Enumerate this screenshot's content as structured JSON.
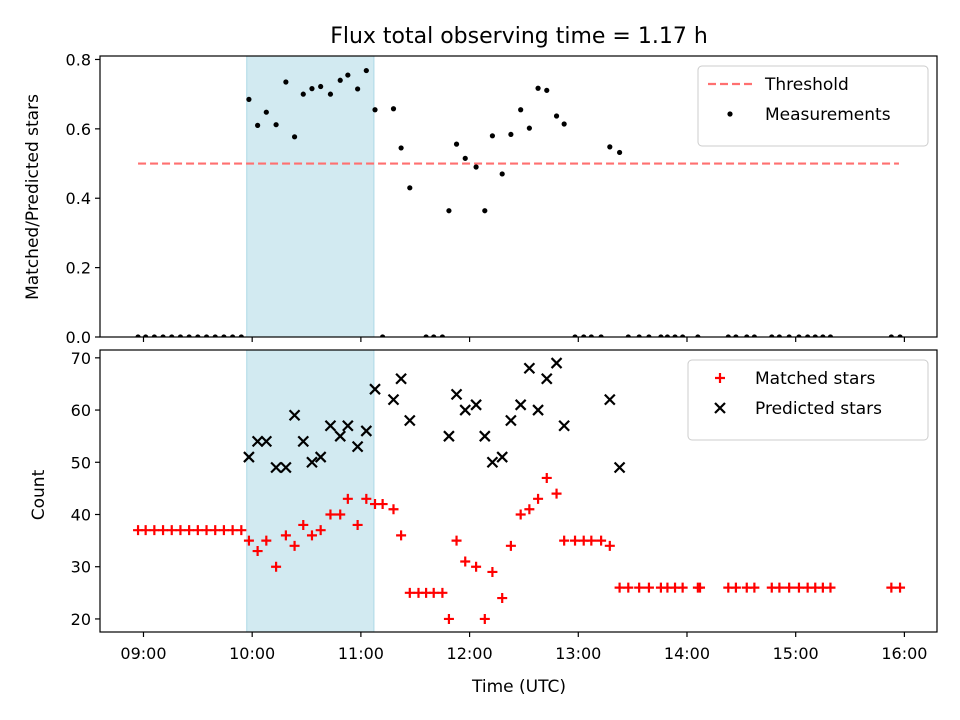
{
  "chart_data": [
    {
      "type": "scatter",
      "title": "Flux total observing time = 1.17 h",
      "xlabel": "",
      "ylabel": "Matched/Predicted stars",
      "x_unit": "hours (UTC)",
      "xlim": [
        8.6,
        16.3
      ],
      "ylim": [
        0,
        0.81
      ],
      "yticks": [
        0,
        0.2,
        0.4,
        0.6,
        0.8
      ],
      "yticklabels": [
        "0.0",
        "0.2",
        "0.4",
        "0.6",
        "0.8"
      ],
      "legend_position": "top-right",
      "shaded_region": {
        "x": [
          9.95,
          11.12
        ],
        "color": "#add8e6"
      },
      "threshold": {
        "name": "Threshold",
        "y": 0.5,
        "x": [
          8.95,
          15.95
        ],
        "color": "#ff7070",
        "style": "dashed"
      },
      "series": [
        {
          "name": "Measurements",
          "color": "#000000",
          "marker": "dot",
          "points": [
            [
              8.95,
              0
            ],
            [
              9.02,
              0
            ],
            [
              9.1,
              0
            ],
            [
              9.18,
              0
            ],
            [
              9.26,
              0
            ],
            [
              9.34,
              0
            ],
            [
              9.42,
              0
            ],
            [
              9.5,
              0
            ],
            [
              9.58,
              0
            ],
            [
              9.66,
              0
            ],
            [
              9.74,
              0
            ],
            [
              9.82,
              0
            ],
            [
              9.9,
              0
            ],
            [
              9.97,
              0.685
            ],
            [
              10.05,
              0.61
            ],
            [
              10.13,
              0.648
            ],
            [
              10.22,
              0.612
            ],
            [
              10.31,
              0.735
            ],
            [
              10.39,
              0.577
            ],
            [
              10.47,
              0.7
            ],
            [
              10.55,
              0.716
            ],
            [
              10.63,
              0.722
            ],
            [
              10.72,
              0.7
            ],
            [
              10.81,
              0.74
            ],
            [
              10.88,
              0.755
            ],
            [
              10.97,
              0.715
            ],
            [
              11.05,
              0.768
            ],
            [
              11.13,
              0.655
            ],
            [
              11.2,
              0
            ],
            [
              11.3,
              0.658
            ],
            [
              11.37,
              0.545
            ],
            [
              11.45,
              0.43
            ],
            [
              11.6,
              0
            ],
            [
              11.67,
              0
            ],
            [
              11.75,
              0
            ],
            [
              11.81,
              0.364
            ],
            [
              11.88,
              0.556
            ],
            [
              11.96,
              0.515
            ],
            [
              12.06,
              0.49
            ],
            [
              12.14,
              0.364
            ],
            [
              12.21,
              0.58
            ],
            [
              12.3,
              0.47
            ],
            [
              12.38,
              0.584
            ],
            [
              12.47,
              0.655
            ],
            [
              12.55,
              0.602
            ],
            [
              12.63,
              0.717
            ],
            [
              12.71,
              0.711
            ],
            [
              12.8,
              0.637
            ],
            [
              12.87,
              0.614
            ],
            [
              12.97,
              0
            ],
            [
              13.05,
              0
            ],
            [
              13.12,
              0
            ],
            [
              13.21,
              0
            ],
            [
              13.29,
              0.548
            ],
            [
              13.38,
              0.532
            ],
            [
              13.46,
              0
            ],
            [
              13.56,
              0
            ],
            [
              13.65,
              0
            ],
            [
              13.76,
              0
            ],
            [
              13.82,
              0
            ],
            [
              13.89,
              0
            ],
            [
              13.96,
              0
            ],
            [
              14.1,
              0
            ],
            [
              14.38,
              0
            ],
            [
              14.45,
              0
            ],
            [
              14.55,
              0
            ],
            [
              14.62,
              0
            ],
            [
              14.78,
              0
            ],
            [
              14.85,
              0
            ],
            [
              14.94,
              0
            ],
            [
              15.03,
              0
            ],
            [
              15.11,
              0
            ],
            [
              15.18,
              0
            ],
            [
              15.25,
              0
            ],
            [
              15.32,
              0
            ],
            [
              15.88,
              0
            ],
            [
              15.96,
              0
            ]
          ]
        }
      ]
    },
    {
      "type": "scatter",
      "title": "",
      "xlabel": "Time (UTC)",
      "ylabel": "Count",
      "x_unit": "hours (UTC)",
      "xlim": [
        8.6,
        16.3
      ],
      "ylim": [
        17.5,
        71.5
      ],
      "yticks": [
        20,
        30,
        40,
        50,
        60,
        70
      ],
      "yticklabels": [
        "20",
        "30",
        "40",
        "50",
        "60",
        "70"
      ],
      "xticks": [
        9,
        10,
        11,
        12,
        13,
        14,
        15,
        16
      ],
      "xticklabels": [
        "09:00",
        "10:00",
        "11:00",
        "12:00",
        "13:00",
        "14:00",
        "15:00",
        "16:00"
      ],
      "legend_position": "top-right",
      "shaded_region": {
        "x": [
          9.95,
          11.12
        ],
        "color": "#add8e6"
      },
      "series": [
        {
          "name": "Matched stars",
          "color": "#ff0000",
          "marker": "plus",
          "points": [
            [
              8.95,
              37
            ],
            [
              9.02,
              37
            ],
            [
              9.1,
              37
            ],
            [
              9.18,
              37
            ],
            [
              9.26,
              37
            ],
            [
              9.34,
              37
            ],
            [
              9.42,
              37
            ],
            [
              9.5,
              37
            ],
            [
              9.58,
              37
            ],
            [
              9.66,
              37
            ],
            [
              9.74,
              37
            ],
            [
              9.82,
              37
            ],
            [
              9.9,
              37
            ],
            [
              9.97,
              35
            ],
            [
              10.05,
              33
            ],
            [
              10.13,
              35
            ],
            [
              10.22,
              30
            ],
            [
              10.31,
              36
            ],
            [
              10.39,
              34
            ],
            [
              10.47,
              38
            ],
            [
              10.55,
              36
            ],
            [
              10.63,
              37
            ],
            [
              10.72,
              40
            ],
            [
              10.81,
              40
            ],
            [
              10.88,
              43
            ],
            [
              10.97,
              38
            ],
            [
              11.05,
              43
            ],
            [
              11.13,
              42
            ],
            [
              11.2,
              42
            ],
            [
              11.3,
              41
            ],
            [
              11.37,
              36
            ],
            [
              11.45,
              25
            ],
            [
              11.53,
              25
            ],
            [
              11.6,
              25
            ],
            [
              11.67,
              25
            ],
            [
              11.75,
              25
            ],
            [
              11.81,
              20
            ],
            [
              11.88,
              35
            ],
            [
              11.96,
              31
            ],
            [
              12.06,
              30
            ],
            [
              12.14,
              20
            ],
            [
              12.21,
              29
            ],
            [
              12.3,
              24
            ],
            [
              12.38,
              34
            ],
            [
              12.47,
              40
            ],
            [
              12.55,
              41
            ],
            [
              12.63,
              43
            ],
            [
              12.71,
              47
            ],
            [
              12.8,
              44
            ],
            [
              12.87,
              35
            ],
            [
              12.97,
              35
            ],
            [
              13.05,
              35
            ],
            [
              13.12,
              35
            ],
            [
              13.21,
              35
            ],
            [
              13.29,
              34
            ],
            [
              13.38,
              26
            ],
            [
              13.46,
              26
            ],
            [
              13.56,
              26
            ],
            [
              13.65,
              26
            ],
            [
              13.76,
              26
            ],
            [
              13.82,
              26
            ],
            [
              13.89,
              26
            ],
            [
              13.96,
              26
            ],
            [
              14.1,
              26
            ],
            [
              14.12,
              26
            ],
            [
              14.38,
              26
            ],
            [
              14.45,
              26
            ],
            [
              14.55,
              26
            ],
            [
              14.62,
              26
            ],
            [
              14.78,
              26
            ],
            [
              14.85,
              26
            ],
            [
              14.94,
              26
            ],
            [
              15.03,
              26
            ],
            [
              15.11,
              26
            ],
            [
              15.18,
              26
            ],
            [
              15.25,
              26
            ],
            [
              15.32,
              26
            ],
            [
              15.88,
              26
            ],
            [
              15.96,
              26
            ]
          ]
        },
        {
          "name": "Predicted stars",
          "color": "#000000",
          "marker": "x",
          "points": [
            [
              9.97,
              51
            ],
            [
              10.05,
              54
            ],
            [
              10.13,
              54
            ],
            [
              10.22,
              49
            ],
            [
              10.31,
              49
            ],
            [
              10.39,
              59
            ],
            [
              10.47,
              54
            ],
            [
              10.55,
              50
            ],
            [
              10.63,
              51
            ],
            [
              10.72,
              57
            ],
            [
              10.81,
              55
            ],
            [
              10.88,
              57
            ],
            [
              10.97,
              53
            ],
            [
              11.05,
              56
            ],
            [
              11.13,
              64
            ],
            [
              11.3,
              62
            ],
            [
              11.37,
              66
            ],
            [
              11.45,
              58
            ],
            [
              11.81,
              55
            ],
            [
              11.88,
              63
            ],
            [
              11.96,
              60
            ],
            [
              12.06,
              61
            ],
            [
              12.14,
              55
            ],
            [
              12.21,
              50
            ],
            [
              12.3,
              51
            ],
            [
              12.38,
              58
            ],
            [
              12.47,
              61
            ],
            [
              12.55,
              68
            ],
            [
              12.63,
              60
            ],
            [
              12.71,
              66
            ],
            [
              12.8,
              69
            ],
            [
              12.87,
              57
            ],
            [
              13.29,
              62
            ],
            [
              13.38,
              49
            ]
          ]
        }
      ]
    }
  ]
}
